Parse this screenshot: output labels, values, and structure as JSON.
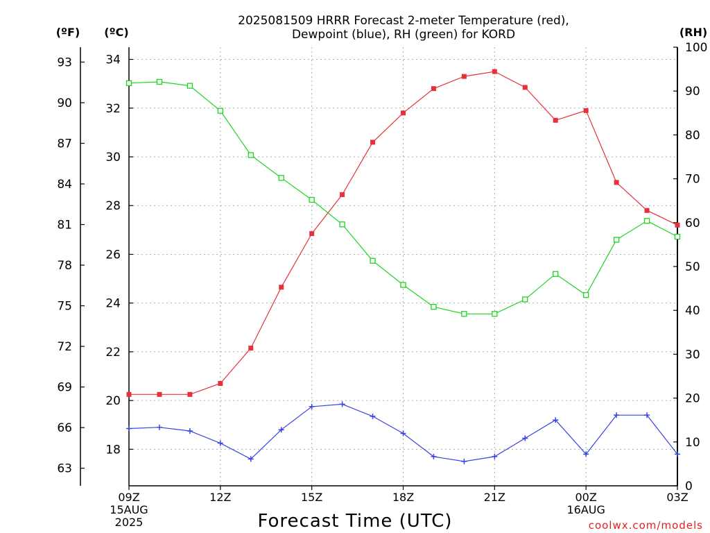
{
  "title_line1": "2025081509 HRRR Forecast 2-meter Temperature (red),",
  "title_line2": "Dewpoint (blue), RH (green) for KORD",
  "unit_f": "(ºF)",
  "unit_c": "(ºC)",
  "unit_rh": "(RH)",
  "xlabel": "Forecast Time (UTC)",
  "credit": "coolwx.com/models",
  "chart_data": {
    "type": "line",
    "x": [
      "09Z",
      "10Z",
      "11Z",
      "12Z",
      "13Z",
      "14Z",
      "15Z",
      "16Z",
      "17Z",
      "18Z",
      "19Z",
      "20Z",
      "21Z",
      "22Z",
      "23Z",
      "00Z",
      "01Z",
      "02Z",
      "03Z"
    ],
    "x_tick_labels": [
      {
        "index": 0,
        "label": "09Z",
        "sub1": "15AUG",
        "sub2": "2025"
      },
      {
        "index": 3,
        "label": "12Z",
        "sub1": "",
        "sub2": ""
      },
      {
        "index": 6,
        "label": "15Z",
        "sub1": "",
        "sub2": ""
      },
      {
        "index": 9,
        "label": "18Z",
        "sub1": "",
        "sub2": ""
      },
      {
        "index": 12,
        "label": "21Z",
        "sub1": "",
        "sub2": ""
      },
      {
        "index": 15,
        "label": "00Z",
        "sub1": "16AUG",
        "sub2": ""
      },
      {
        "index": 18,
        "label": "03Z",
        "sub1": "",
        "sub2": ""
      }
    ],
    "y_celsius": {
      "range": [
        16.5,
        34.5
      ],
      "ticks": [
        18,
        20,
        22,
        24,
        26,
        28,
        30,
        32,
        34
      ]
    },
    "y_fahrenheit_ticks": [
      63,
      66,
      69,
      72,
      75,
      78,
      81,
      84,
      87,
      90,
      93
    ],
    "y_rh": {
      "range": [
        0,
        100
      ],
      "ticks": [
        0,
        10,
        20,
        30,
        40,
        50,
        60,
        70,
        80,
        90,
        100
      ]
    },
    "grid": true,
    "series": [
      {
        "axis": "celsius",
        "color": "#e8303a",
        "marker": "filled-square",
        "values": [
          20.25,
          20.25,
          20.25,
          20.7,
          22.15,
          24.65,
          26.85,
          28.45,
          30.6,
          31.8,
          32.8,
          33.3,
          33.5,
          32.85,
          31.5,
          31.9,
          28.95,
          27.8,
          27.2
        ]
      },
      {
        "axis": "celsius",
        "color": "#3545e0",
        "marker": "plus",
        "values": [
          18.85,
          18.9,
          18.75,
          18.25,
          17.6,
          18.8,
          19.75,
          19.85,
          19.35,
          18.65,
          17.7,
          17.5,
          17.7,
          18.45,
          19.2,
          17.8,
          19.4,
          19.4,
          17.8
        ]
      },
      {
        "axis": "rh",
        "color": "#1ed41e",
        "marker": "open-square",
        "values": [
          91.8,
          92.1,
          91.2,
          85.5,
          75.4,
          70.2,
          65.2,
          59.6,
          51.3,
          45.8,
          40.8,
          39.2,
          39.2,
          42.5,
          48.3,
          43.5,
          56.1,
          60.4,
          56.8
        ]
      }
    ]
  }
}
